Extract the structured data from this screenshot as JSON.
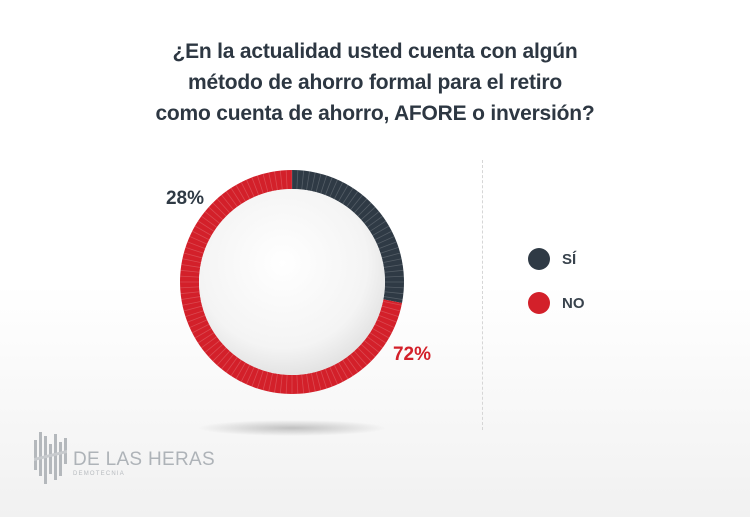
{
  "question": {
    "line1": "¿En la actualidad usted cuenta con algún",
    "line2": "método de ahorro formal para el retiro",
    "line3": "como cuenta de ahorro, AFORE o inversión?"
  },
  "legend": {
    "items": [
      {
        "label": "SÍ",
        "color": "#2f3a45"
      },
      {
        "label": "NO",
        "color": "#d3202a"
      }
    ]
  },
  "brand": {
    "name": "DE LAS HERAS",
    "tagline": "DEMOTECNIA"
  },
  "chart_data": {
    "type": "pie",
    "style": "donut",
    "categories": [
      "SÍ",
      "NO"
    ],
    "values": [
      28,
      72
    ],
    "labels": [
      "28%",
      "72%"
    ],
    "colors": [
      "#2f3a45",
      "#d3202a"
    ],
    "start": "top, clockwise",
    "title": "¿En la actualidad usted cuenta con algún método de ahorro formal para el retiro como cuenta de ahorro, AFORE o inversión?",
    "legend": "right"
  }
}
